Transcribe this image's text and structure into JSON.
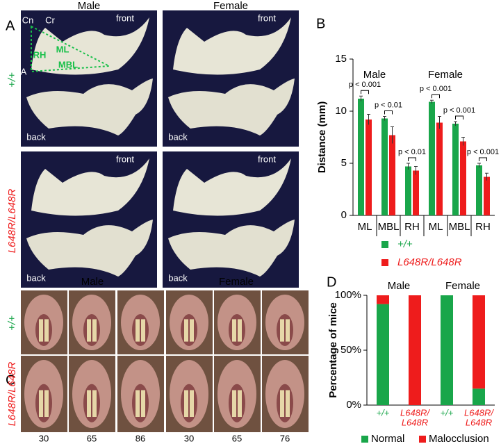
{
  "panels": [
    "A",
    "B",
    "C",
    "D"
  ],
  "panel_a": {
    "columns": [
      "Male",
      "Female"
    ],
    "rows": [
      "+/+",
      "L648R/L648R"
    ],
    "images": [
      {
        "top": "front",
        "bottom": "back"
      },
      {
        "top": "front",
        "bottom": "back"
      },
      {
        "top": "front",
        "bottom": "back"
      },
      {
        "top": "front",
        "bottom": "back"
      }
    ],
    "landmarks": {
      "cn": "Cn",
      "cr": "Cr",
      "ml": "ML",
      "rh": "RH",
      "mbl": "MBL",
      "a": "A"
    }
  },
  "panel_c": {
    "columns": [
      "Male",
      "Female"
    ],
    "rows": [
      "+/+",
      "L648R/L648R"
    ],
    "ids": [
      "30",
      "65",
      "86",
      "30",
      "65",
      "76"
    ]
  },
  "chart_data": [
    {
      "type": "bar",
      "groups": [
        "Male",
        "Female"
      ],
      "categories": [
        "ML",
        "MBL",
        "RH",
        "ML",
        "MBL",
        "RH"
      ],
      "ylabel": "Distance (mm)",
      "ylim": [
        0,
        15
      ],
      "yticks": [
        0,
        5,
        10,
        15
      ],
      "series": [
        {
          "name": "+/+",
          "color": "#19a64a",
          "values": [
            11.2,
            9.3,
            4.7,
            10.9,
            8.8,
            4.8
          ],
          "errors": [
            0.25,
            0.2,
            0.3,
            0.15,
            0.2,
            0.2
          ]
        },
        {
          "name": "L648R/L648R",
          "color": "#ee1c1c",
          "values": [
            9.2,
            7.7,
            4.3,
            8.9,
            7.1,
            3.7
          ],
          "errors": [
            0.5,
            0.8,
            0.4,
            0.6,
            0.4,
            0.35
          ]
        }
      ],
      "annotations": [
        "p < 0.001",
        "p < 0.01",
        "p < 0.01",
        "p < 0.001",
        "p < 0.001",
        "p < 0.001"
      ]
    },
    {
      "type": "stacked_bar",
      "groups": [
        "Male",
        "Female"
      ],
      "categories": [
        [
          "+/+"
        ],
        [
          "L648R/",
          "L648R"
        ],
        [
          "+/+"
        ],
        [
          "L648R/",
          "L648R"
        ]
      ],
      "ylabel": "Percentage of mice",
      "ylim": [
        0,
        100
      ],
      "yticks": [
        {
          "value": 0,
          "label": "0%"
        },
        {
          "value": 50,
          "label": "50%"
        },
        {
          "value": 100,
          "label": "100%"
        }
      ],
      "series": [
        {
          "name": "Normal",
          "color": "#19a64a",
          "values": [
            92,
            0,
            100,
            15
          ]
        },
        {
          "name": "Malocclusion",
          "color": "#ee1c1c",
          "values": [
            8,
            100,
            0,
            85
          ]
        }
      ]
    }
  ]
}
